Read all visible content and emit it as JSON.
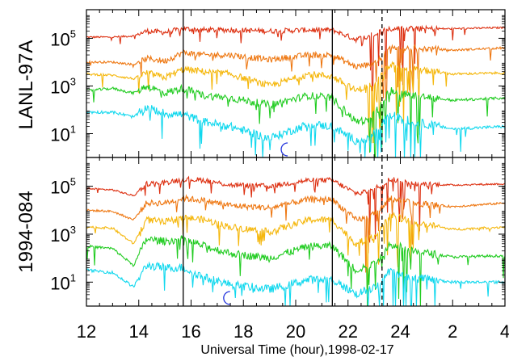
{
  "chart_data": {
    "type": "line",
    "xlabel": "Universal Time (hour),1998-02-17",
    "x_ticks": [
      "12",
      "14",
      "16",
      "18",
      "20",
      "22",
      "24",
      "2",
      "4"
    ],
    "x_range_hours": [
      12,
      28
    ],
    "y_scale": "log",
    "y_ticks": [
      {
        "mantissa": "10",
        "exponent": "1"
      },
      {
        "mantissa": "10",
        "exponent": "3"
      },
      {
        "mantissa": "10",
        "exponent": "5"
      }
    ],
    "y_range_log10": [
      0,
      6.2
    ],
    "vertical_markers": [
      {
        "x": 15.7,
        "style": "solid"
      },
      {
        "x": 21.4,
        "style": "solid"
      },
      {
        "x": 23.3,
        "style": "dashed"
      }
    ],
    "series_colors": [
      "#dd3011",
      "#ee7711",
      "#f5b70c",
      "#22cc22",
      "#11d8ee"
    ],
    "moon_icon_color": "#2233dd",
    "panels": [
      {
        "title": "LANL-97A",
        "moon_marker_x": 19.6,
        "series": [
          {
            "color": "#dd3011",
            "levels": [
              [
                12,
                5.05
              ],
              [
                13,
                5.05
              ],
              [
                13.8,
                5.1
              ],
              [
                14.3,
                5.3
              ],
              [
                15,
                5.25
              ],
              [
                15.7,
                5.4
              ],
              [
                16.5,
                5.35
              ],
              [
                17.5,
                5.35
              ],
              [
                19,
                5.3
              ],
              [
                20.5,
                5.35
              ],
              [
                21.4,
                5.35
              ],
              [
                22.3,
                4.95
              ],
              [
                22.8,
                5.1
              ],
              [
                23.2,
                5.3
              ],
              [
                23.6,
                5.4
              ],
              [
                24.5,
                5.4
              ],
              [
                26,
                5.4
              ],
              [
                28,
                5.45
              ]
            ]
          },
          {
            "color": "#ee7711",
            "levels": [
              [
                12,
                4.0
              ],
              [
                13,
                4.0
              ],
              [
                13.8,
                3.9
              ],
              [
                14.3,
                4.15
              ],
              [
                15,
                4.05
              ],
              [
                15.7,
                4.4
              ],
              [
                16.5,
                4.3
              ],
              [
                17.5,
                4.3
              ],
              [
                19,
                4.1
              ],
              [
                20.5,
                4.3
              ],
              [
                21.4,
                4.3
              ],
              [
                22.3,
                3.8
              ],
              [
                22.8,
                3.9
              ],
              [
                23.2,
                4.1
              ],
              [
                23.6,
                4.6
              ],
              [
                24.5,
                4.6
              ],
              [
                26,
                4.5
              ],
              [
                28,
                4.6
              ]
            ]
          },
          {
            "color": "#f5b70c",
            "levels": [
              [
                12,
                3.5
              ],
              [
                13,
                3.45
              ],
              [
                13.8,
                3.3
              ],
              [
                14.3,
                3.55
              ],
              [
                15,
                3.35
              ],
              [
                15.7,
                3.7
              ],
              [
                16.5,
                3.6
              ],
              [
                17.5,
                3.5
              ],
              [
                19,
                3.0
              ],
              [
                20.5,
                3.5
              ],
              [
                21.4,
                3.4
              ],
              [
                22.3,
                2.8
              ],
              [
                22.8,
                3.0
              ],
              [
                23.2,
                3.3
              ],
              [
                23.6,
                3.9
              ],
              [
                24.5,
                3.7
              ],
              [
                26,
                3.5
              ],
              [
                28,
                3.55
              ]
            ]
          },
          {
            "color": "#22cc22",
            "levels": [
              [
                12,
                2.8
              ],
              [
                13,
                2.9
              ],
              [
                13.8,
                2.7
              ],
              [
                14.3,
                3.0
              ],
              [
                15,
                2.7
              ],
              [
                15.7,
                2.9
              ],
              [
                16.5,
                2.6
              ],
              [
                17.5,
                2.5
              ],
              [
                19,
                2.2
              ],
              [
                20.5,
                2.6
              ],
              [
                21.4,
                2.5
              ],
              [
                22.3,
                1.5
              ],
              [
                22.8,
                1.6
              ],
              [
                23.2,
                2.1
              ],
              [
                23.6,
                2.8
              ],
              [
                24.5,
                2.6
              ],
              [
                26,
                2.4
              ],
              [
                28,
                2.5
              ]
            ]
          },
          {
            "color": "#11d8ee",
            "levels": [
              [
                12,
                1.9
              ],
              [
                13,
                1.9
              ],
              [
                13.8,
                1.7
              ],
              [
                14.3,
                2.1
              ],
              [
                15,
                1.85
              ],
              [
                15.7,
                1.8
              ],
              [
                16.5,
                1.5
              ],
              [
                17.5,
                1.3
              ],
              [
                19,
                0.8
              ],
              [
                20.5,
                1.4
              ],
              [
                21.4,
                1.3
              ],
              [
                22.3,
                0.7
              ],
              [
                22.8,
                0.8
              ],
              [
                23.2,
                1.3
              ],
              [
                23.6,
                1.8
              ],
              [
                24.5,
                1.5
              ],
              [
                26,
                1.2
              ],
              [
                28,
                1.3
              ]
            ]
          }
        ]
      },
      {
        "title": "1994-084",
        "moon_marker_x": 17.4,
        "series": [
          {
            "color": "#dd3011",
            "levels": [
              [
                12,
                4.9
              ],
              [
                13,
                4.85
              ],
              [
                13.8,
                4.6
              ],
              [
                14.3,
                5.1
              ],
              [
                15,
                5.15
              ],
              [
                15.7,
                5.3
              ],
              [
                16.5,
                5.25
              ],
              [
                17.5,
                5.05
              ],
              [
                19,
                5.0
              ],
              [
                20.5,
                5.25
              ],
              [
                21.4,
                5.25
              ],
              [
                22.3,
                4.7
              ],
              [
                22.8,
                4.8
              ],
              [
                23.2,
                5.0
              ],
              [
                23.6,
                5.3
              ],
              [
                24.5,
                5.1
              ],
              [
                26,
                5.05
              ],
              [
                28,
                5.1
              ]
            ]
          },
          {
            "color": "#ee7711",
            "levels": [
              [
                12,
                4.0
              ],
              [
                13,
                3.95
              ],
              [
                13.8,
                3.6
              ],
              [
                14.3,
                4.3
              ],
              [
                15,
                4.3
              ],
              [
                15.7,
                4.5
              ],
              [
                16.5,
                4.4
              ],
              [
                17.5,
                4.2
              ],
              [
                19,
                4.1
              ],
              [
                20.5,
                4.45
              ],
              [
                21.4,
                4.45
              ],
              [
                22.3,
                3.6
              ],
              [
                22.8,
                3.7
              ],
              [
                23.2,
                4.0
              ],
              [
                23.6,
                4.5
              ],
              [
                24.5,
                4.3
              ],
              [
                26,
                4.15
              ],
              [
                28,
                4.3
              ]
            ]
          },
          {
            "color": "#f5b70c",
            "levels": [
              [
                12,
                3.3
              ],
              [
                13,
                3.25
              ],
              [
                13.8,
                2.6
              ],
              [
                14.3,
                3.6
              ],
              [
                15,
                3.5
              ],
              [
                15.7,
                3.7
              ],
              [
                16.5,
                3.6
              ],
              [
                17.5,
                3.3
              ],
              [
                19,
                3.1
              ],
              [
                20.5,
                3.6
              ],
              [
                21.4,
                3.6
              ],
              [
                22.3,
                2.6
              ],
              [
                22.8,
                2.8
              ],
              [
                23.2,
                3.1
              ],
              [
                23.6,
                3.8
              ],
              [
                24.5,
                3.5
              ],
              [
                26,
                3.2
              ],
              [
                28,
                3.3
              ]
            ]
          },
          {
            "color": "#22cc22",
            "levels": [
              [
                12,
                2.5
              ],
              [
                13,
                2.4
              ],
              [
                13.8,
                1.7
              ],
              [
                14.3,
                2.8
              ],
              [
                15,
                2.7
              ],
              [
                15.7,
                2.8
              ],
              [
                16.5,
                2.5
              ],
              [
                17.5,
                2.2
              ],
              [
                19,
                2.0
              ],
              [
                20.5,
                2.5
              ],
              [
                21.4,
                2.5
              ],
              [
                22.3,
                1.5
              ],
              [
                22.8,
                1.7
              ],
              [
                23.2,
                2.0
              ],
              [
                23.6,
                2.6
              ],
              [
                24.5,
                2.3
              ],
              [
                26,
                2.05
              ],
              [
                28,
                2.1
              ]
            ]
          },
          {
            "color": "#11d8ee",
            "levels": [
              [
                12,
                1.5
              ],
              [
                13,
                1.4
              ],
              [
                13.8,
                0.8
              ],
              [
                14.3,
                1.7
              ],
              [
                15,
                1.6
              ],
              [
                15.7,
                1.6
              ],
              [
                16.5,
                1.2
              ],
              [
                17.5,
                0.9
              ],
              [
                19,
                0.7
              ],
              [
                20.5,
                1.1
              ],
              [
                21.4,
                1.1
              ],
              [
                22.3,
                0.5
              ],
              [
                22.8,
                0.7
              ],
              [
                23.2,
                0.9
              ],
              [
                23.6,
                1.5
              ],
              [
                24.5,
                1.2
              ],
              [
                26,
                1.0
              ],
              [
                28,
                1.0
              ]
            ]
          }
        ]
      }
    ]
  }
}
